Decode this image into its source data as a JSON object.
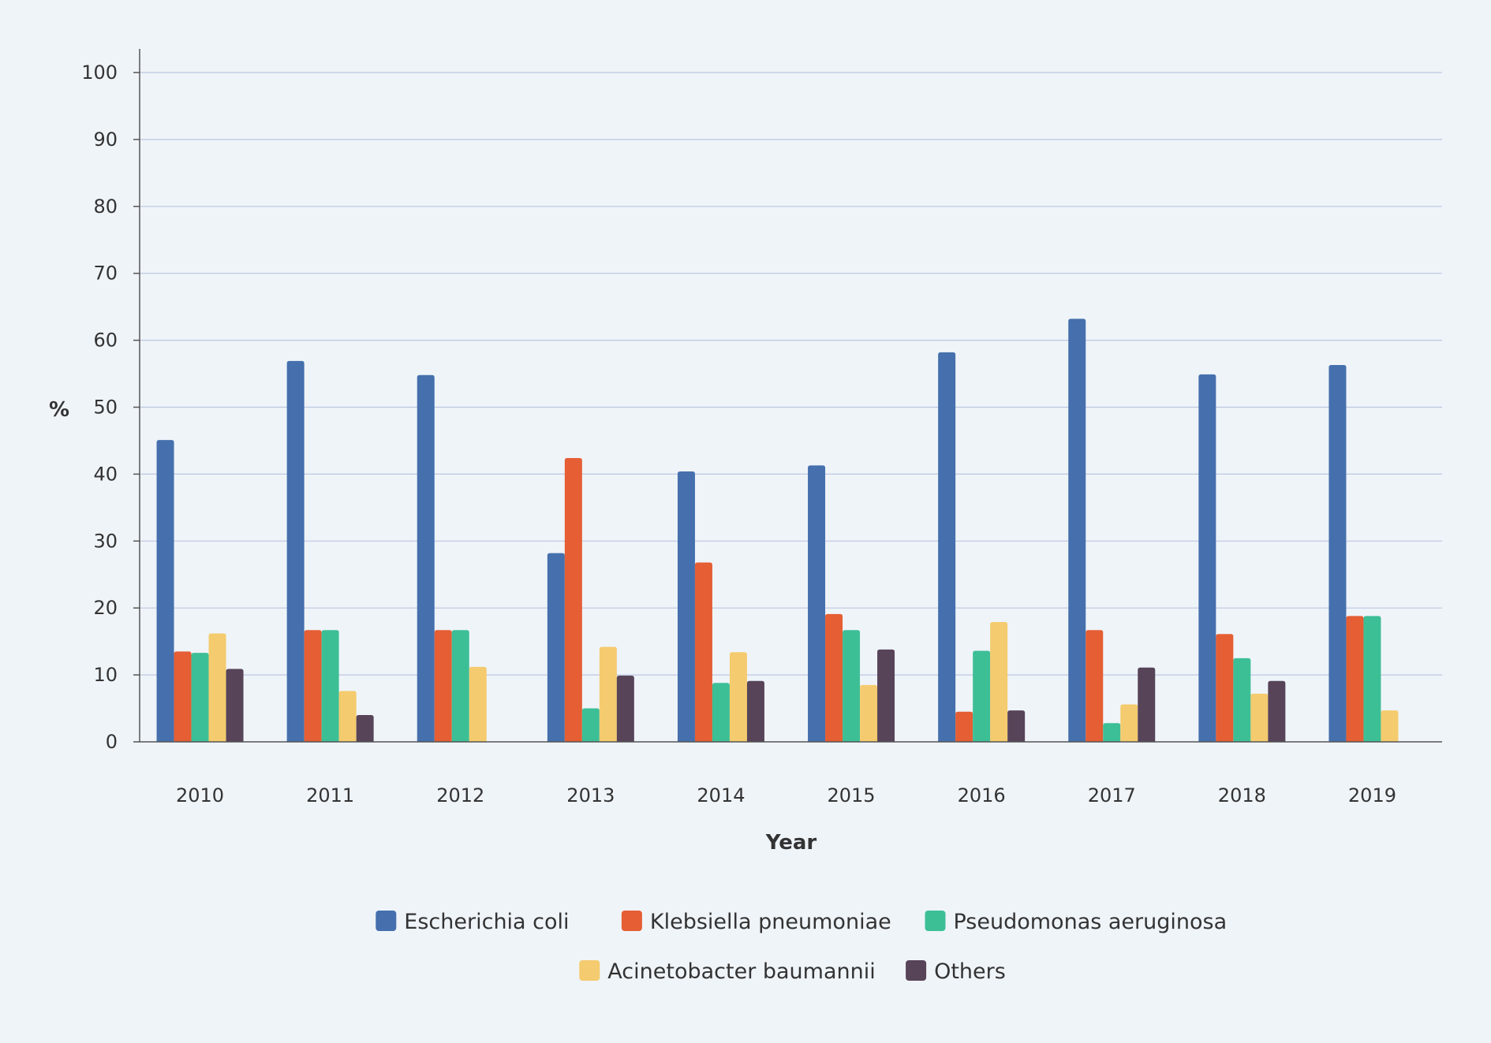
{
  "chart_data": {
    "type": "bar",
    "title": "",
    "xlabel": "Year",
    "ylabel": "%",
    "ylim": [
      0,
      100
    ],
    "yticks": [
      0,
      10,
      20,
      30,
      40,
      50,
      60,
      70,
      80,
      90,
      100
    ],
    "grid": true,
    "legend_position": "bottom",
    "categories": [
      "2010",
      "2011",
      "2012",
      "2013",
      "2014",
      "2015",
      "2016",
      "2017",
      "2018",
      "2019"
    ],
    "series": [
      {
        "name": "Escherichia coli",
        "color": "#4570ad",
        "values": [
          45.1,
          56.9,
          54.8,
          28.2,
          40.4,
          41.3,
          58.2,
          63.2,
          54.9,
          56.3
        ]
      },
      {
        "name": "Klebsiella pneumoniae",
        "color": "#e55e34",
        "values": [
          13.5,
          16.7,
          16.7,
          42.4,
          26.8,
          19.1,
          4.5,
          16.7,
          16.1,
          18.8
        ]
      },
      {
        "name": "Pseudomonas aeruginosa",
        "color": "#3dbf96",
        "values": [
          13.3,
          16.7,
          16.7,
          5.0,
          8.8,
          16.7,
          13.6,
          2.8,
          12.5,
          18.8
        ]
      },
      {
        "name": "Acinetobacter baumannii",
        "color": "#f4cb6e",
        "values": [
          16.2,
          7.6,
          11.2,
          14.2,
          13.4,
          8.5,
          17.9,
          5.6,
          7.2,
          4.7
        ]
      },
      {
        "name": "Others",
        "color": "#574459",
        "values": [
          10.9,
          4.0,
          0,
          9.9,
          9.1,
          13.8,
          4.7,
          11.1,
          9.1,
          0
        ]
      }
    ]
  }
}
